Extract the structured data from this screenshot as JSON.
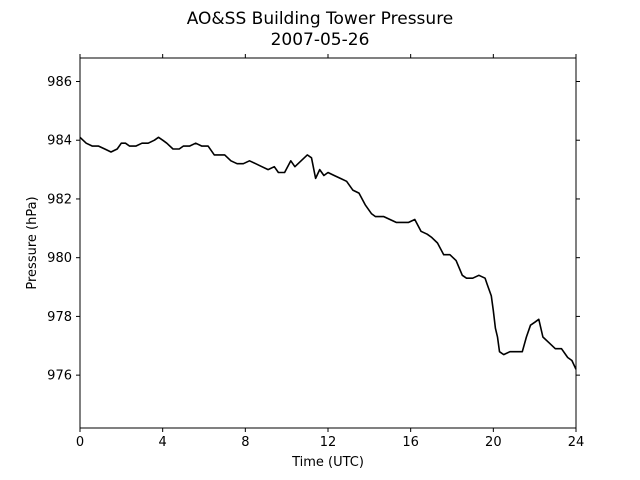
{
  "chart_data": {
    "type": "line",
    "title": "AO&SS Building Tower Pressure",
    "subtitle": "2007-05-26",
    "xlabel": "Time (UTC)",
    "ylabel": "Pressure (hPa)",
    "xlim": [
      0,
      24
    ],
    "ylim": [
      974.2,
      986.8
    ],
    "xticks": [
      0,
      4,
      8,
      12,
      16,
      20,
      24
    ],
    "yticks": [
      976,
      978,
      980,
      982,
      984,
      986
    ],
    "grid": false,
    "line_color": "#000000",
    "series": [
      {
        "x": [
          0,
          0.3,
          0.6,
          0.9,
          1.2,
          1.5,
          1.8,
          2.0,
          2.2,
          2.4,
          2.7,
          3.0,
          3.3,
          3.6,
          3.8,
          4.0,
          4.2,
          4.5,
          4.8,
          5.0,
          5.3,
          5.6,
          5.9,
          6.2,
          6.5,
          6.8,
          7.0,
          7.3,
          7.6,
          7.9,
          8.2,
          8.5,
          8.8,
          9.1,
          9.4,
          9.6,
          9.9,
          10.2,
          10.4,
          10.7,
          11.0,
          11.2,
          11.4,
          11.6,
          11.8,
          12.0,
          12.3,
          12.6,
          12.9,
          13.2,
          13.5,
          13.8,
          14.1,
          14.3,
          14.5,
          14.7,
          15.0,
          15.3,
          15.6,
          15.9,
          16.2,
          16.5,
          16.8,
          17.0,
          17.3,
          17.6,
          17.9,
          18.2,
          18.5,
          18.7,
          19.0,
          19.3,
          19.6,
          19.7,
          19.9,
          20.0,
          20.1,
          20.2,
          20.3,
          20.5,
          20.8,
          21.1,
          21.4,
          21.6,
          21.8,
          22.0,
          22.2,
          22.4,
          22.7,
          23.0,
          23.3,
          23.6,
          23.8,
          24.0
        ],
        "y": [
          984.1,
          983.9,
          983.8,
          983.8,
          983.7,
          983.6,
          983.7,
          983.9,
          983.9,
          983.8,
          983.8,
          983.9,
          983.9,
          984.0,
          984.1,
          984.0,
          983.9,
          983.7,
          983.7,
          983.8,
          983.8,
          983.9,
          983.8,
          983.8,
          983.5,
          983.5,
          983.5,
          983.3,
          983.2,
          983.2,
          983.3,
          983.2,
          983.1,
          983.0,
          983.1,
          982.9,
          982.9,
          983.3,
          983.1,
          983.3,
          983.5,
          983.4,
          982.7,
          983.0,
          982.8,
          982.9,
          982.8,
          982.7,
          982.6,
          982.3,
          982.2,
          981.8,
          981.5,
          981.4,
          981.4,
          981.4,
          981.3,
          981.2,
          981.2,
          981.2,
          981.3,
          980.9,
          980.8,
          980.7,
          980.5,
          980.1,
          980.1,
          979.9,
          979.4,
          979.3,
          979.3,
          979.4,
          979.3,
          979.1,
          978.7,
          978.2,
          977.6,
          977.3,
          976.8,
          976.7,
          976.8,
          976.8,
          976.8,
          977.3,
          977.7,
          977.8,
          977.9,
          977.3,
          977.1,
          976.9,
          976.9,
          976.6,
          976.5,
          976.2
        ]
      }
    ]
  }
}
